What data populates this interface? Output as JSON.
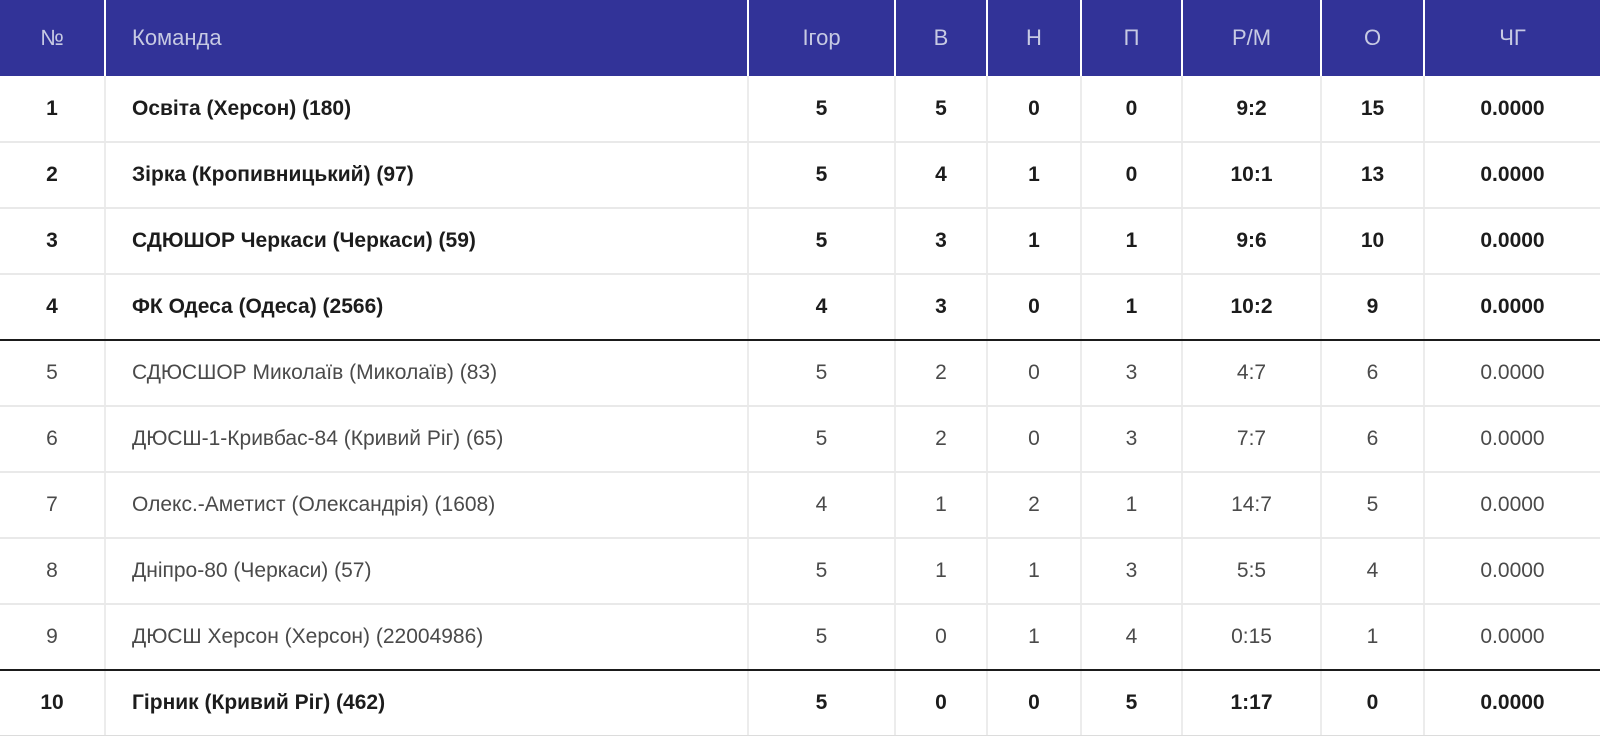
{
  "colors": {
    "header_bg": "#323398",
    "header_text": "#c7cae3",
    "zone_divider": "#1b1b1b"
  },
  "table": {
    "columns": [
      {
        "key": "rank",
        "label": "№"
      },
      {
        "key": "team",
        "label": "Команда"
      },
      {
        "key": "games",
        "label": "Ігор"
      },
      {
        "key": "wins",
        "label": "В"
      },
      {
        "key": "draws",
        "label": "Н"
      },
      {
        "key": "losses",
        "label": "П"
      },
      {
        "key": "goals",
        "label": "Р/М"
      },
      {
        "key": "points",
        "label": "О"
      },
      {
        "key": "chg",
        "label": "ЧГ"
      }
    ],
    "rows": [
      {
        "rank": "1",
        "team": "Освіта (Херсон) (180)",
        "games": "5",
        "wins": "5",
        "draws": "0",
        "losses": "0",
        "goals": "9:2",
        "points": "15",
        "chg": "0.0000",
        "bold": true
      },
      {
        "rank": "2",
        "team": "Зірка (Кропивницький) (97)",
        "games": "5",
        "wins": "4",
        "draws": "1",
        "losses": "0",
        "goals": "10:1",
        "points": "13",
        "chg": "0.0000",
        "bold": true
      },
      {
        "rank": "3",
        "team": "СДЮШОР Черкаси (Черкаси) (59)",
        "games": "5",
        "wins": "3",
        "draws": "1",
        "losses": "1",
        "goals": "9:6",
        "points": "10",
        "chg": "0.0000",
        "bold": true
      },
      {
        "rank": "4",
        "team": "ФК Одеса (Одеса) (2566)",
        "games": "4",
        "wins": "3",
        "draws": "0",
        "losses": "1",
        "goals": "10:2",
        "points": "9",
        "chg": "0.0000",
        "bold": true
      },
      {
        "rank": "5",
        "team": "СДЮСШОР Миколаїв (Миколаїв) (83)",
        "games": "5",
        "wins": "2",
        "draws": "0",
        "losses": "3",
        "goals": "4:7",
        "points": "6",
        "chg": "0.0000",
        "bold": false
      },
      {
        "rank": "6",
        "team": "ДЮСШ-1-Кривбас-84 (Кривий Ріг) (65)",
        "games": "5",
        "wins": "2",
        "draws": "0",
        "losses": "3",
        "goals": "7:7",
        "points": "6",
        "chg": "0.0000",
        "bold": false
      },
      {
        "rank": "7",
        "team": "Олекс.-Аметист (Олександрія) (1608)",
        "games": "4",
        "wins": "1",
        "draws": "2",
        "losses": "1",
        "goals": "14:7",
        "points": "5",
        "chg": "0.0000",
        "bold": false
      },
      {
        "rank": "8",
        "team": "Дніпро-80 (Черкаси) (57)",
        "games": "5",
        "wins": "1",
        "draws": "1",
        "losses": "3",
        "goals": "5:5",
        "points": "4",
        "chg": "0.0000",
        "bold": false
      },
      {
        "rank": "9",
        "team": "ДЮСШ Херсон (Херсон) (22004986)",
        "games": "5",
        "wins": "0",
        "draws": "1",
        "losses": "4",
        "goals": "0:15",
        "points": "1",
        "chg": "0.0000",
        "bold": false
      },
      {
        "rank": "10",
        "team": "Гірник (Кривий Ріг) (462)",
        "games": "5",
        "wins": "0",
        "draws": "0",
        "losses": "5",
        "goals": "1:17",
        "points": "0",
        "chg": "0.0000",
        "bold": true
      }
    ]
  }
}
